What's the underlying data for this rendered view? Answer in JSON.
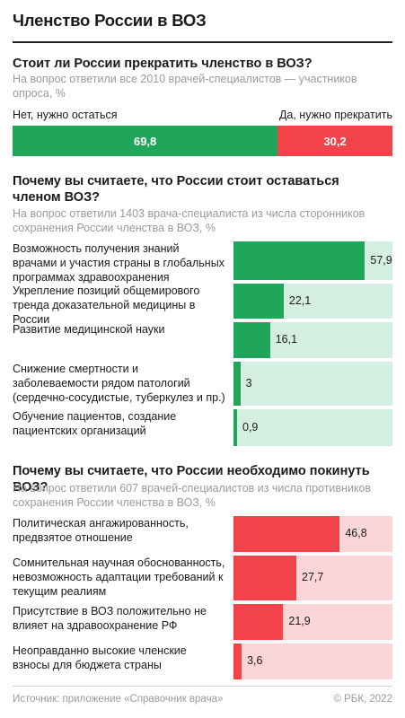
{
  "title": "Членство России в ВОЗ",
  "colors": {
    "green": "#1fa65a",
    "green_light": "#d4efe1",
    "red": "#f2434a",
    "red_light": "#fbd6d6"
  },
  "q1": {
    "title": "Стоит ли России прекратить членство в ВОЗ?",
    "subtitle": "На вопрос ответили все 2010 врачей-специалистов — участников опроса, %",
    "left_label": "Нет, нужно остаться",
    "right_label": "Да, нужно прекратить",
    "left_value_text": "69,8",
    "right_value_text": "30,2"
  },
  "q2": {
    "title": "Почему вы считаете, что России стоит оставаться членом ВОЗ?",
    "subtitle": "На вопрос ответили 1403 врача-специалиста из числа сторонников сохранения России членства в ВОЗ, %",
    "rows": [
      {
        "label": "Возможность получения знаний врачами и участия страны в глобальных программах здравоохранения",
        "value_text": "57,9"
      },
      {
        "label": "Укрепление позиций общемирового тренда доказательной медицины в России",
        "value_text": "22,1"
      },
      {
        "label": "Развитие медицинской науки",
        "value_text": "16,1"
      },
      {
        "label": "Снижение смертности и заболеваемости рядом патологий (сердечно-сосудистые, туберкулез и пр.)",
        "value_text": "3"
      },
      {
        "label": "Обучение пациентов, создание пациентских организаций",
        "value_text": "0,9"
      }
    ]
  },
  "q3": {
    "title": "Почему вы считаете, что России необходимо покинуть ВОЗ?",
    "subtitle": "На вопрос ответили 607 врачей-специалистов из числа противников сохранения России членства в ВОЗ, %",
    "rows": [
      {
        "label": "Политическая ангажированность, предвзятое отношение",
        "value_text": "46,8"
      },
      {
        "label": "Сомнительная научная обоснованность, невозможность адаптации требований к текущим реалиям",
        "value_text": "27,7"
      },
      {
        "label": "Присутствие в ВОЗ положительно не влияет на здравоохранение РФ",
        "value_text": "21,9"
      },
      {
        "label": "Неоправданно высокие членские взносы для бюджета страны",
        "value_text": "3,6"
      }
    ]
  },
  "footer": {
    "source": "Источник: приложение «Справочник врача»",
    "copyright": "© РБК, 2022"
  },
  "chart_data": [
    {
      "type": "bar",
      "title": "Стоит ли России прекратить членство в ВОЗ?",
      "categories": [
        "Нет, нужно остаться",
        "Да, нужно прекратить"
      ],
      "values": [
        69.8,
        30.2
      ],
      "ylim": [
        0,
        100
      ]
    },
    {
      "type": "bar",
      "title": "Почему вы считаете, что России стоит оставаться членом ВОЗ?",
      "categories": [
        "Возможность получения знаний врачами и участия страны в глобальных программах здравоохранения",
        "Укрепление позиций общемирового тренда доказательной медицины в России",
        "Развитие медицинской науки",
        "Снижение смертности и заболеваемости рядом патологий (сердечно-сосудистые, туберкулез и пр.)",
        "Обучение пациентов, создание пациентских организаций"
      ],
      "values": [
        57.9,
        22.1,
        16.1,
        3,
        0.9
      ],
      "ylim": [
        0,
        100
      ]
    },
    {
      "type": "bar",
      "title": "Почему вы считаете, что России необходимо покинуть ВОЗ?",
      "categories": [
        "Политическая ангажированность, предвзятое отношение",
        "Сомнительная научная обоснованность, невозможность адаптации требований к текущим реалиям",
        "Присутствие в ВОЗ положительно не влияет на здравоохранение РФ",
        "Неоправданно высокие членские взносы для бюджета страны"
      ],
      "values": [
        46.8,
        27.7,
        21.9,
        3.6
      ],
      "ylim": [
        0,
        100
      ]
    }
  ]
}
